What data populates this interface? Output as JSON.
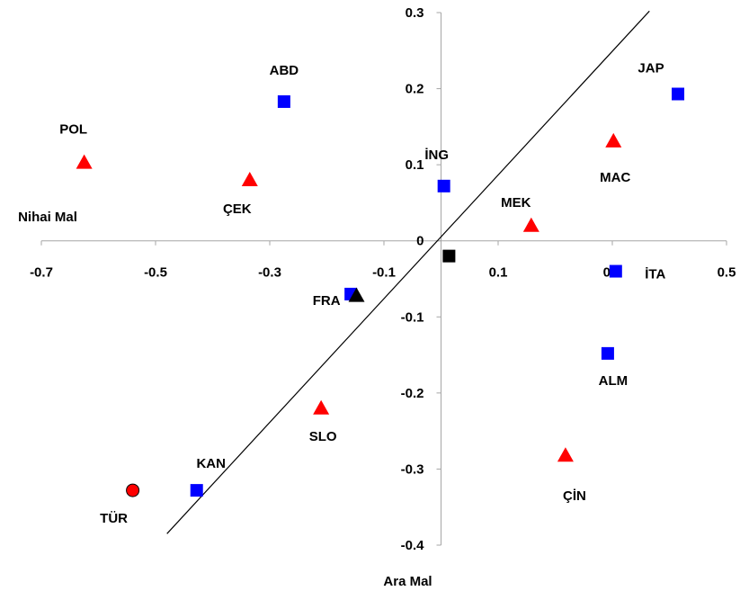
{
  "chart_data": {
    "type": "scatter",
    "title": "",
    "xlabel": "Ara Mal",
    "ylabel": "Nihai Mal",
    "xlim": [
      -0.7,
      0.5
    ],
    "ylim": [
      -0.4,
      0.3
    ],
    "x_ticks": [
      "-0.7",
      "-0.5",
      "-0.3",
      "-0.1",
      "0.1",
      "0.3",
      "0.5"
    ],
    "y_ticks": [
      "0.3",
      "0.2",
      "0.1",
      "0",
      "-0.1",
      "-0.2",
      "-0.3",
      "-0.4"
    ],
    "x_tick_values": [
      -0.7,
      -0.5,
      -0.3,
      -0.1,
      0.1,
      0.3,
      0.5
    ],
    "y_tick_values": [
      0.3,
      0.2,
      0.1,
      0,
      -0.1,
      -0.2,
      -0.3,
      -0.4
    ],
    "grid": false,
    "trend_line": {
      "from": [
        -0.48,
        -0.385
      ],
      "to": [
        0.365,
        0.302
      ],
      "color": "#000000"
    },
    "colors": {
      "square": "#0000ff",
      "triangle": "#ff0000",
      "circle": "#ff0000",
      "black": "#000000",
      "axis": "#a6a6a6"
    },
    "points": [
      {
        "label": "ABD",
        "x": -0.275,
        "y": 0.183,
        "marker": "square",
        "color": "#0000ff"
      },
      {
        "label": "JAP",
        "x": 0.415,
        "y": 0.193,
        "marker": "square",
        "color": "#0000ff"
      },
      {
        "label": "İNG",
        "x": 0.005,
        "y": 0.072,
        "marker": "square",
        "color": "#0000ff"
      },
      {
        "label": "KAN",
        "x": -0.428,
        "y": -0.328,
        "marker": "square",
        "color": "#0000ff"
      },
      {
        "label": "ALM",
        "x": 0.292,
        "y": -0.148,
        "marker": "square",
        "color": "#0000ff"
      },
      {
        "label": "İTA",
        "x": 0.306,
        "y": -0.04,
        "marker": "square",
        "color": "#0000ff"
      },
      {
        "label": "FRA",
        "x": -0.158,
        "y": -0.07,
        "marker": "square",
        "color": "#0000ff"
      },
      {
        "label": "POL",
        "x": -0.625,
        "y": 0.103,
        "marker": "triangle",
        "color": "#ff0000"
      },
      {
        "label": "ÇEK",
        "x": -0.335,
        "y": 0.08,
        "marker": "triangle",
        "color": "#ff0000"
      },
      {
        "label": "MEK",
        "x": 0.158,
        "y": 0.02,
        "marker": "triangle",
        "color": "#ff0000"
      },
      {
        "label": "MAC",
        "x": 0.302,
        "y": 0.131,
        "marker": "triangle",
        "color": "#ff0000"
      },
      {
        "label": "SLO",
        "x": -0.21,
        "y": -0.22,
        "marker": "triangle",
        "color": "#ff0000"
      },
      {
        "label": "ÇİN",
        "x": 0.218,
        "y": -0.282,
        "marker": "triangle",
        "color": "#ff0000"
      },
      {
        "label": "TÜR",
        "x": -0.54,
        "y": -0.328,
        "marker": "circle",
        "color": "#ff0000"
      },
      {
        "label": "",
        "x": 0.014,
        "y": -0.02,
        "marker": "square",
        "color": "#000000"
      },
      {
        "label": "",
        "x": -0.148,
        "y": -0.072,
        "marker": "triangle",
        "color": "#000000"
      }
    ]
  }
}
